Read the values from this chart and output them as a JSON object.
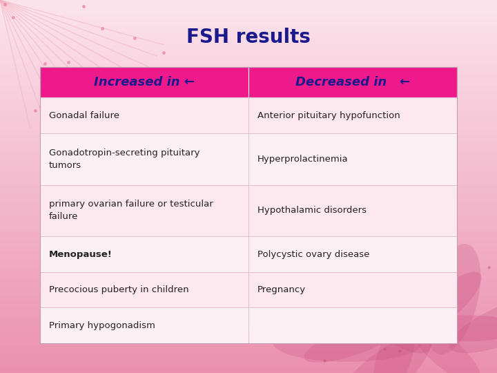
{
  "title": "FSH results",
  "title_color": "#1a1a8c",
  "title_fontsize": 20,
  "title_fontweight": "bold",
  "bg_color_top": "#fadadd",
  "bg_color_bottom": "#f5a0b5",
  "header_bg": "#ee1a8c",
  "header_text_color": "#1a1a8c",
  "header_left": "Increased in ←",
  "header_right": "Decreased in   ←",
  "table_bg_light": "#fce8ee",
  "table_bg_white": "#fdf0f4",
  "table_border_color": "#d8b0be",
  "cell_text_color": "#222222",
  "rows": [
    [
      "Gonadal failure",
      "Anterior pituitary hypofunction"
    ],
    [
      "Gonadotropin-secreting pituitary\ntumors",
      "Hyperprolactinemia"
    ],
    [
      "primary ovarian failure or testicular\nfailure",
      "Hypothalamic disorders"
    ],
    [
      "Menopause!",
      "Polycystic ovary disease"
    ],
    [
      "Precocious puberty in children",
      "Pregnancy"
    ],
    [
      "Primary hypogonadism",
      ""
    ]
  ],
  "bold_rows": [
    3
  ],
  "figsize": [
    7.2,
    5.4
  ],
  "dpi": 100
}
